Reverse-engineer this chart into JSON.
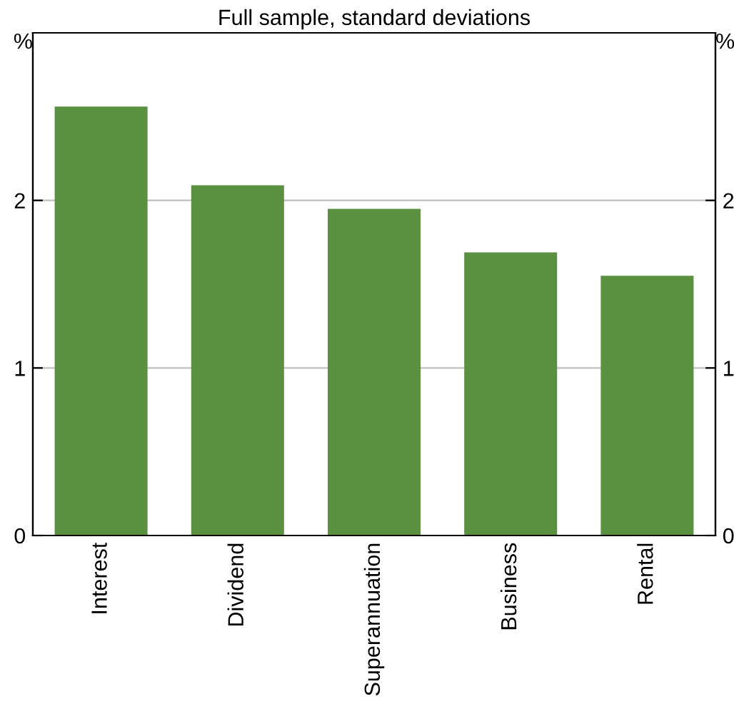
{
  "chart_data": {
    "type": "bar",
    "title": "Full sample, standard deviations",
    "categories": [
      "Interest",
      "Dividend",
      "Superannuation",
      "Business",
      "Rental"
    ],
    "values": [
      2.56,
      2.09,
      1.95,
      1.69,
      1.55
    ],
    "color": "#5a9140",
    "ylabel": "%",
    "y2label": "%",
    "ylim": [
      0,
      3
    ],
    "yticks": [
      0,
      1,
      2
    ],
    "y2lim": [
      0,
      3
    ],
    "y2ticks": [
      0,
      1,
      2
    ],
    "grid": "y",
    "legend": false
  }
}
